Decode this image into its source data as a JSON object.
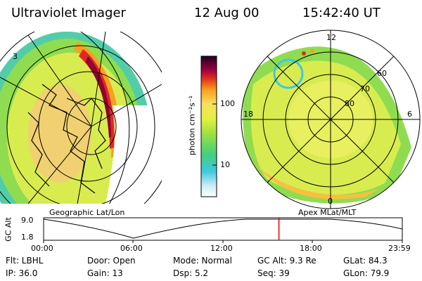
{
  "header": {
    "instrument": "Ultraviolet Imager",
    "date": "12 Aug 00",
    "time": "15:42:40 UT"
  },
  "geo_panel": {
    "caption": "Geographic Lat/Lon",
    "lat_label": "3"
  },
  "polar_panel": {
    "caption": "Apex MLat/MLT",
    "mlt_labels": {
      "top": "12",
      "left": "18",
      "right": "6",
      "bottom": "0"
    },
    "lat_labels": [
      "60",
      "70",
      "80"
    ]
  },
  "colorbar": {
    "unit": "photon cm⁻²s⁻¹",
    "ticks": [
      "100",
      "10"
    ]
  },
  "altitude_plot": {
    "ylabel": "GC Alt",
    "y_ticks": [
      "9.0",
      "1.8"
    ],
    "x_ticks": [
      "00:00",
      "06:00",
      "12:00",
      "18:00",
      "23:59"
    ],
    "current_time_fraction": 0.656,
    "marker_color": "#e00000"
  },
  "status": {
    "filter": "Flt: LBHL",
    "ip": "IP: 36.0",
    "door": "Door: Open",
    "gain": "Gain: 13",
    "mode": "Mode: Normal",
    "dsp": "Dsp:    5.2",
    "gc_alt": "GC Alt: 9.3 Re",
    "seq": "Seq: 39",
    "glat": "GLat:   84.3",
    "glon": "GLon:   79.9"
  }
}
